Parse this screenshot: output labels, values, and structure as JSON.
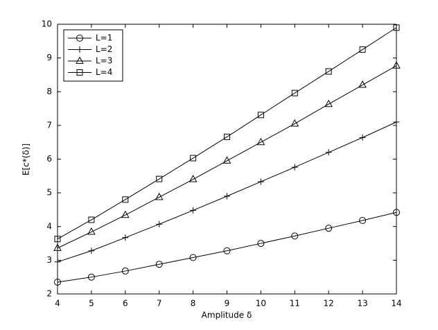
{
  "chart_data": {
    "type": "line",
    "x_label": "Amplitude δ",
    "y_label": "E[c*(δ)]",
    "x": [
      4,
      5,
      6,
      7,
      8,
      9,
      10,
      11,
      12,
      13,
      14
    ],
    "series": [
      {
        "name": "L=1",
        "color": "#000000",
        "marker": "circle",
        "values": [
          2.35,
          2.5,
          2.68,
          2.88,
          3.08,
          3.28,
          3.5,
          3.72,
          3.95,
          4.18,
          4.42
        ]
      },
      {
        "name": "L=2",
        "color": "#000000",
        "marker": "plus",
        "values": [
          2.95,
          3.28,
          3.67,
          4.07,
          4.48,
          4.9,
          5.33,
          5.76,
          6.2,
          6.64,
          7.1
        ]
      },
      {
        "name": "L=3",
        "color": "#000000",
        "marker": "triangle",
        "values": [
          3.36,
          3.84,
          4.34,
          4.87,
          5.4,
          5.95,
          6.5,
          7.05,
          7.63,
          8.2,
          8.77
        ]
      },
      {
        "name": "L=4",
        "color": "#000000",
        "marker": "square",
        "values": [
          3.63,
          4.2,
          4.8,
          5.41,
          6.03,
          6.66,
          7.31,
          7.96,
          8.6,
          9.25,
          9.9
        ]
      }
    ],
    "xlim": [
      4,
      14
    ],
    "xticks": [
      4,
      5,
      6,
      7,
      8,
      9,
      10,
      11,
      12,
      13,
      14
    ],
    "ylim": [
      2,
      10
    ],
    "yticks": [
      2,
      3,
      4,
      5,
      6,
      7,
      8,
      9,
      10
    ],
    "legend": "upper-left",
    "grid": false
  }
}
